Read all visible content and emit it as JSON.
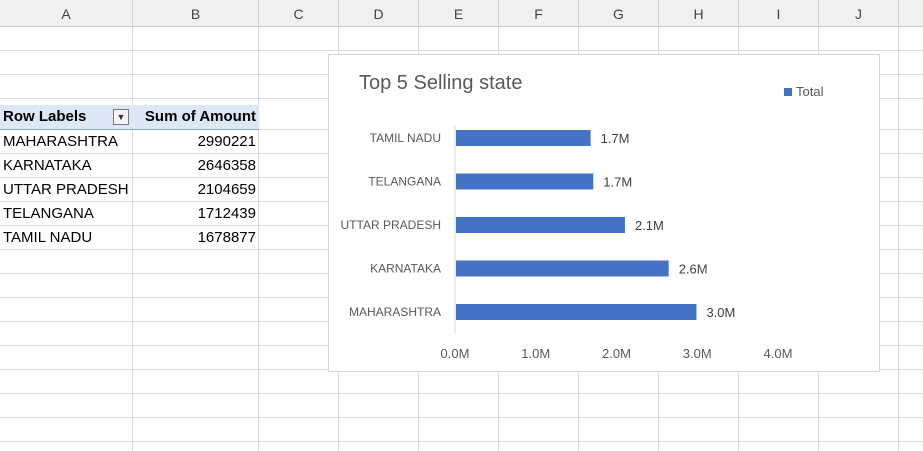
{
  "columns": [
    "A",
    "B",
    "C",
    "D",
    "E",
    "F",
    "G",
    "H",
    "I",
    "J"
  ],
  "pivot": {
    "header_row_labels": "Row Labels",
    "header_sum": "Sum of Amount",
    "rows": [
      {
        "label": "MAHARASHTRA",
        "value": "2990221"
      },
      {
        "label": "KARNATAKA",
        "value": "2646358"
      },
      {
        "label": "UTTAR PRADESH",
        "value": "2104659"
      },
      {
        "label": "TELANGANA",
        "value": "1712439"
      },
      {
        "label": "TAMIL NADU",
        "value": "1678877"
      }
    ]
  },
  "chart_data": {
    "type": "bar",
    "orientation": "horizontal",
    "title": "Top 5 Selling state",
    "legend": "Total",
    "legend_position": "top-right",
    "bar_color": "#4472c4",
    "categories": [
      "MAHARASHTRA",
      "KARNATAKA",
      "UTTAR PRADESH",
      "TELANGANA",
      "TAMIL NADU"
    ],
    "values": [
      2990221,
      2646358,
      2104659,
      1712439,
      1678877
    ],
    "data_labels": [
      "3.0M",
      "2.6M",
      "2.1M",
      "1.7M",
      "1.7M"
    ],
    "xlim": [
      0,
      4000000
    ],
    "x_ticks": [
      0,
      1000000,
      2000000,
      3000000,
      4000000
    ],
    "x_tick_labels": [
      "0.0M",
      "1.0M",
      "2.0M",
      "3.0M",
      "4.0M"
    ],
    "grid": false
  }
}
